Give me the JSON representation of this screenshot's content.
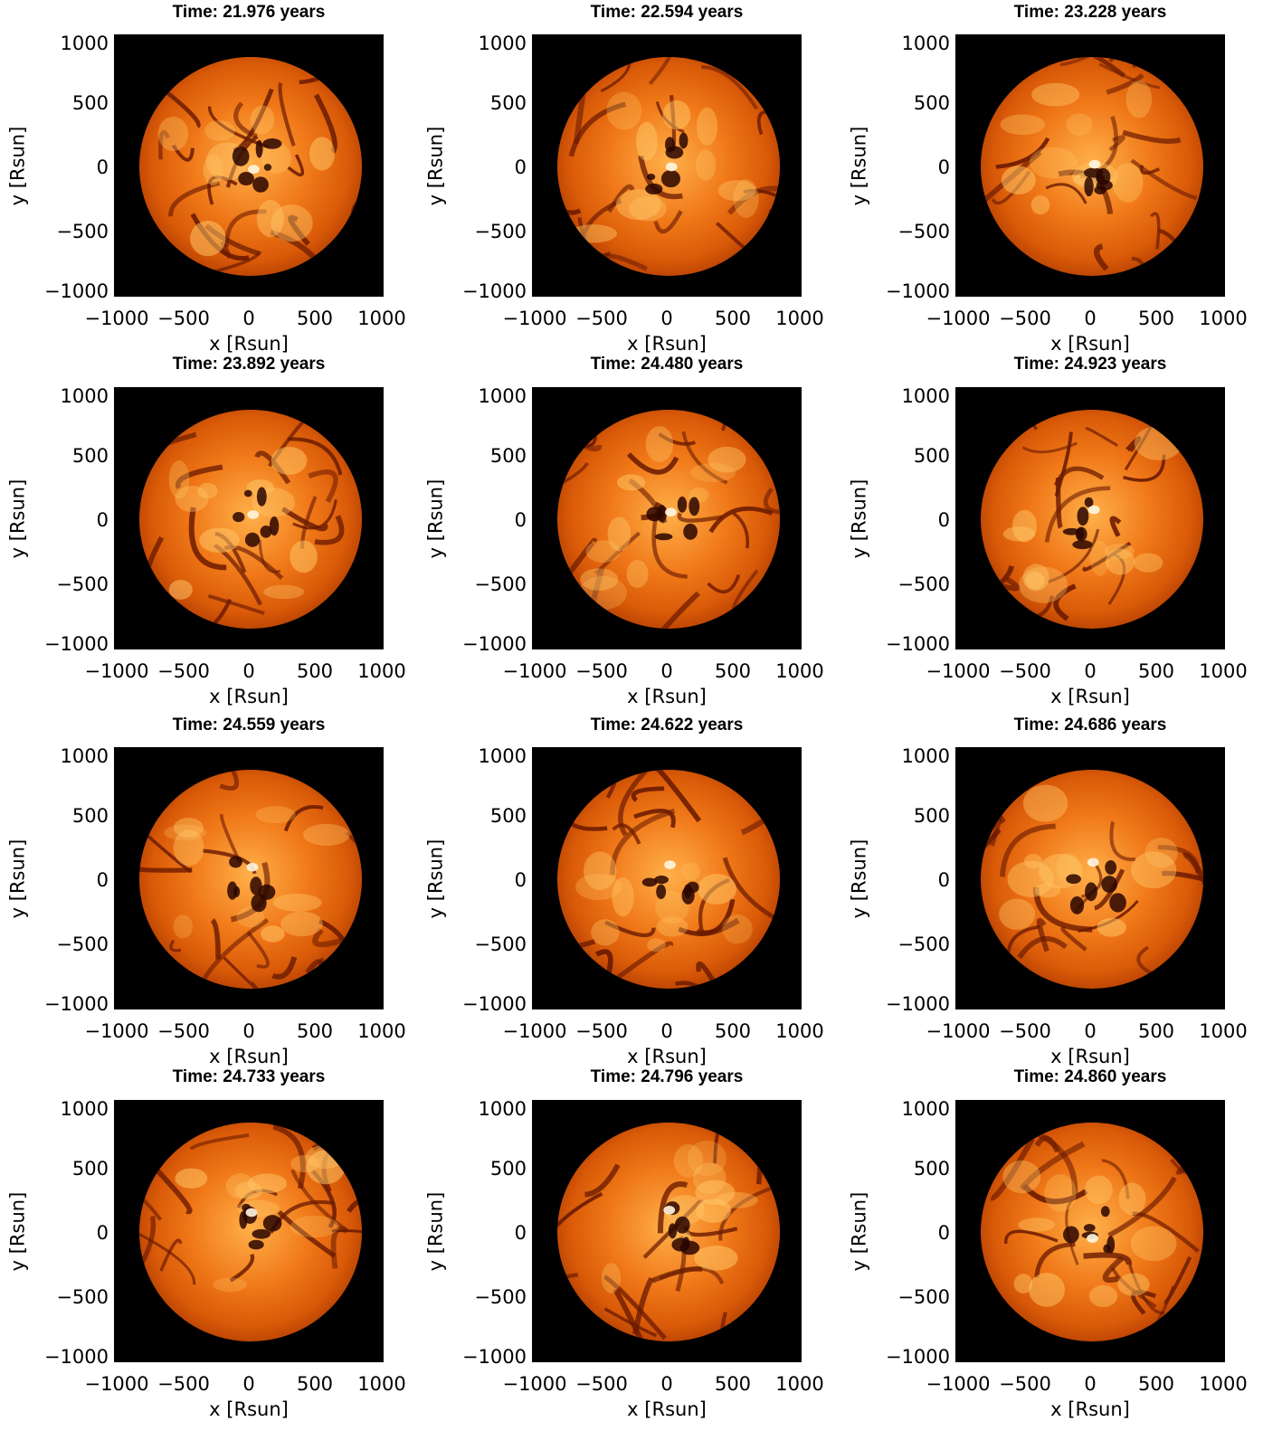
{
  "panels": [
    {
      "title": "Time: 21.976 years"
    },
    {
      "title": "Time: 22.594 years"
    },
    {
      "title": "Time: 23.228 years"
    },
    {
      "title": "Time: 23.892 years"
    },
    {
      "title": "Time: 24.480 years"
    },
    {
      "title": "Time: 24.923 years"
    },
    {
      "title": "Time: 24.559 years"
    },
    {
      "title": "Time: 24.622 years"
    },
    {
      "title": "Time: 24.686 years"
    },
    {
      "title": "Time: 24.733 years"
    },
    {
      "title": "Time: 24.796 years"
    },
    {
      "title": "Time: 24.860 years"
    }
  ],
  "axes": {
    "x_label": "x [Rsun]",
    "y_label": "y [Rsun]",
    "x_ticks": [
      "−1000",
      "−500",
      "0",
      "500",
      "1000"
    ],
    "y_ticks": [
      "1000",
      "500",
      "0",
      "−500",
      "−1000"
    ]
  },
  "colors": {
    "background": "#000000",
    "surface_core": "#ffb04a",
    "surface_mid": "#f07818",
    "surface_edge": "#a43300",
    "cell_lanes": "#6a1a00"
  }
}
